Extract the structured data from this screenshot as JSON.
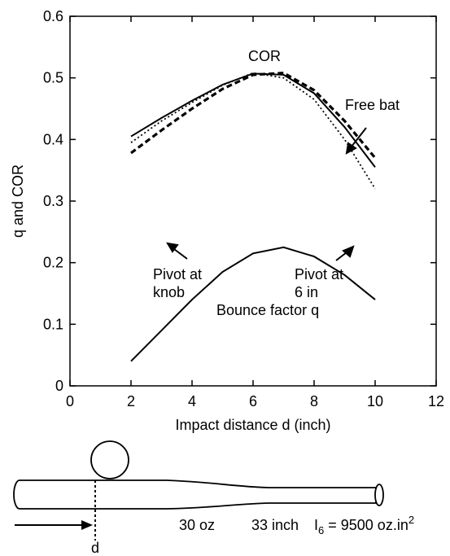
{
  "chart_data": {
    "type": "line",
    "xlabel": "Impact distance d (inch)",
    "ylabel": "q and COR",
    "annotation": "COR",
    "x": [
      2,
      3,
      4,
      5,
      6,
      7,
      8,
      9,
      10
    ],
    "series": [
      {
        "name": "Free bat",
        "color": "#000000",
        "style": "solid",
        "values": [
          0.405,
          0.435,
          0.463,
          0.489,
          0.507,
          0.505,
          0.475,
          0.42,
          0.355
        ]
      },
      {
        "name": "Pivot at knob",
        "color": "#000000",
        "style": "dashed",
        "values": [
          0.378,
          0.415,
          0.45,
          0.482,
          0.505,
          0.508,
          0.48,
          0.43,
          0.37
        ]
      },
      {
        "name": "Pivot at 6 in",
        "color": "#000000",
        "style": "dotted",
        "values": [
          0.395,
          0.43,
          0.46,
          0.488,
          0.508,
          0.5,
          0.465,
          0.4,
          0.32
        ]
      },
      {
        "name": "Bounce factor q",
        "color": "#000000",
        "style": "solid",
        "values": [
          0.04,
          0.09,
          0.14,
          0.185,
          0.215,
          0.225,
          0.21,
          0.18,
          0.14
        ]
      }
    ],
    "xlim": [
      0,
      12
    ],
    "xticks": [
      0,
      2,
      4,
      6,
      8,
      10,
      12
    ],
    "ylim": [
      0,
      0.6
    ],
    "yticks": [
      0,
      0.1,
      0.2,
      0.3,
      0.4,
      0.5,
      0.6
    ]
  },
  "diagram": {
    "distance": "d",
    "mass": "30 oz",
    "length": "33 inch",
    "inertia": {
      "symbol": "I",
      "subscript": "6",
      "text": " = 9500 oz.in",
      "superscript": "2"
    }
  }
}
